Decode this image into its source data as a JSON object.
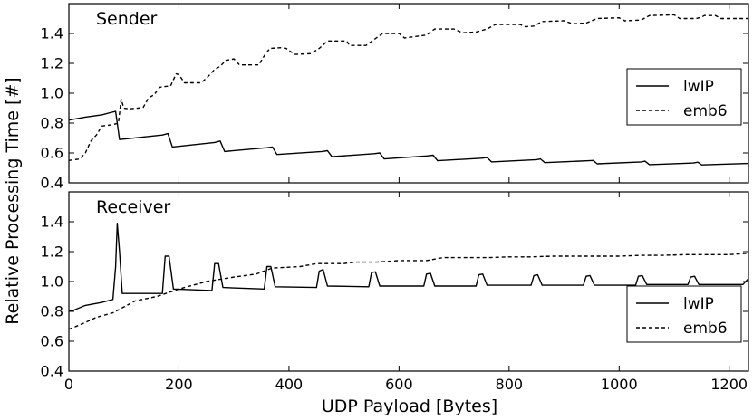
{
  "chart_data": [
    {
      "type": "line",
      "title": "Sender",
      "xlabel": "UDP Payload [Bytes]",
      "ylabel": "Relative Processing Time [#]",
      "xlim": [
        0,
        1235
      ],
      "ylim": [
        0.4,
        1.6
      ],
      "xticks": [
        "0",
        "200",
        "400",
        "600",
        "800",
        "1000",
        "1200"
      ],
      "yticks": [
        "0.4",
        "0.6",
        "0.8",
        "1.0",
        "1.2",
        "1.4"
      ],
      "legend": "right",
      "series": [
        {
          "name": "lwIP",
          "style": "solid",
          "points": [
            [
              0,
              0.82
            ],
            [
              30,
              0.84
            ],
            [
              60,
              0.855
            ],
            [
              75,
              0.87
            ],
            [
              85,
              0.878
            ],
            [
              92,
              0.69
            ],
            [
              170,
              0.72
            ],
            [
              180,
              0.73
            ],
            [
              188,
              0.64
            ],
            [
              265,
              0.67
            ],
            [
              275,
              0.68
            ],
            [
              283,
              0.61
            ],
            [
              360,
              0.635
            ],
            [
              370,
              0.64
            ],
            [
              378,
              0.59
            ],
            [
              460,
              0.61
            ],
            [
              470,
              0.615
            ],
            [
              478,
              0.575
            ],
            [
              555,
              0.595
            ],
            [
              565,
              0.6
            ],
            [
              573,
              0.56
            ],
            [
              650,
              0.58
            ],
            [
              662,
              0.585
            ],
            [
              670,
              0.548
            ],
            [
              750,
              0.565
            ],
            [
              760,
              0.57
            ],
            [
              768,
              0.54
            ],
            [
              850,
              0.555
            ],
            [
              857,
              0.56
            ],
            [
              865,
              0.535
            ],
            [
              945,
              0.548
            ],
            [
              953,
              0.55
            ],
            [
              960,
              0.527
            ],
            [
              1040,
              0.54
            ],
            [
              1047,
              0.545
            ],
            [
              1055,
              0.522
            ],
            [
              1135,
              0.533
            ],
            [
              1143,
              0.538
            ],
            [
              1150,
              0.52
            ],
            [
              1235,
              0.53
            ]
          ]
        },
        {
          "name": "emb6",
          "style": "dashed",
          "points": [
            [
              0,
              0.55
            ],
            [
              20,
              0.56
            ],
            [
              30,
              0.6
            ],
            [
              40,
              0.68
            ],
            [
              50,
              0.72
            ],
            [
              60,
              0.78
            ],
            [
              80,
              0.79
            ],
            [
              90,
              0.8
            ],
            [
              95,
              0.96
            ],
            [
              100,
              0.9
            ],
            [
              110,
              0.895
            ],
            [
              125,
              0.9
            ],
            [
              135,
              0.905
            ],
            [
              145,
              0.97
            ],
            [
              155,
              0.99
            ],
            [
              165,
              1.04
            ],
            [
              185,
              1.05
            ],
            [
              195,
              1.13
            ],
            [
              200,
              1.125
            ],
            [
              210,
              1.07
            ],
            [
              240,
              1.07
            ],
            [
              250,
              1.1
            ],
            [
              255,
              1.12
            ],
            [
              265,
              1.16
            ],
            [
              275,
              1.18
            ],
            [
              285,
              1.22
            ],
            [
              300,
              1.23
            ],
            [
              310,
              1.19
            ],
            [
              345,
              1.19
            ],
            [
              355,
              1.25
            ],
            [
              365,
              1.3
            ],
            [
              385,
              1.305
            ],
            [
              395,
              1.3
            ],
            [
              410,
              1.26
            ],
            [
              440,
              1.265
            ],
            [
              455,
              1.3
            ],
            [
              470,
              1.35
            ],
            [
              505,
              1.35
            ],
            [
              510,
              1.32
            ],
            [
              540,
              1.32
            ],
            [
              555,
              1.36
            ],
            [
              570,
              1.4
            ],
            [
              600,
              1.4
            ],
            [
              610,
              1.37
            ],
            [
              630,
              1.38
            ],
            [
              650,
              1.39
            ],
            [
              665,
              1.43
            ],
            [
              700,
              1.43
            ],
            [
              715,
              1.405
            ],
            [
              740,
              1.41
            ],
            [
              760,
              1.43
            ],
            [
              775,
              1.46
            ],
            [
              820,
              1.46
            ],
            [
              830,
              1.445
            ],
            [
              845,
              1.45
            ],
            [
              860,
              1.48
            ],
            [
              900,
              1.485
            ],
            [
              915,
              1.465
            ],
            [
              940,
              1.47
            ],
            [
              960,
              1.5
            ],
            [
              1000,
              1.505
            ],
            [
              1010,
              1.485
            ],
            [
              1040,
              1.49
            ],
            [
              1055,
              1.52
            ],
            [
              1100,
              1.525
            ],
            [
              1110,
              1.5
            ],
            [
              1140,
              1.5
            ],
            [
              1150,
              1.51
            ],
            [
              1155,
              1.52
            ],
            [
              1175,
              1.52
            ],
            [
              1185,
              1.5
            ],
            [
              1235,
              1.5
            ]
          ]
        }
      ]
    },
    {
      "type": "line",
      "title": "Receiver",
      "xlabel": "UDP Payload [Bytes]",
      "ylabel": "Relative Processing Time [#]",
      "xlim": [
        0,
        1235
      ],
      "ylim": [
        0.4,
        1.6
      ],
      "xticks": [
        "0",
        "200",
        "400",
        "600",
        "800",
        "1000",
        "1200"
      ],
      "yticks": [
        "0.4",
        "0.6",
        "0.8",
        "1.0",
        "1.2",
        "1.4"
      ],
      "legend": "lower right",
      "series": [
        {
          "name": "lwIP",
          "style": "solid",
          "points": [
            [
              0,
              0.8
            ],
            [
              10,
              0.81
            ],
            [
              30,
              0.84
            ],
            [
              60,
              0.86
            ],
            [
              80,
              0.88
            ],
            [
              85,
              1.1
            ],
            [
              88,
              1.39
            ],
            [
              92,
              1.2
            ],
            [
              97,
              0.92
            ],
            [
              170,
              0.92
            ],
            [
              175,
              1.17
            ],
            [
              182,
              1.17
            ],
            [
              190,
              0.95
            ],
            [
              260,
              0.94
            ],
            [
              265,
              1.12
            ],
            [
              272,
              1.12
            ],
            [
              280,
              0.96
            ],
            [
              355,
              0.95
            ],
            [
              360,
              1.1
            ],
            [
              367,
              1.1
            ],
            [
              375,
              0.965
            ],
            [
              450,
              0.96
            ],
            [
              455,
              1.07
            ],
            [
              462,
              1.08
            ],
            [
              470,
              0.97
            ],
            [
              545,
              0.965
            ],
            [
              550,
              1.06
            ],
            [
              557,
              1.065
            ],
            [
              565,
              0.97
            ],
            [
              645,
              0.97
            ],
            [
              650,
              1.05
            ],
            [
              657,
              1.055
            ],
            [
              665,
              0.97
            ],
            [
              740,
              0.97
            ],
            [
              745,
              1.045
            ],
            [
              752,
              1.05
            ],
            [
              760,
              0.975
            ],
            [
              840,
              0.975
            ],
            [
              845,
              1.04
            ],
            [
              852,
              1.045
            ],
            [
              860,
              0.975
            ],
            [
              935,
              0.975
            ],
            [
              940,
              1.035
            ],
            [
              947,
              1.04
            ],
            [
              955,
              0.975
            ],
            [
              1030,
              0.975
            ],
            [
              1035,
              1.035
            ],
            [
              1042,
              1.04
            ],
            [
              1050,
              0.98
            ],
            [
              1125,
              0.98
            ],
            [
              1130,
              1.03
            ],
            [
              1137,
              1.035
            ],
            [
              1145,
              0.98
            ],
            [
              1225,
              0.98
            ],
            [
              1235,
              1.02
            ]
          ]
        },
        {
          "name": "emb6",
          "style": "dashed",
          "points": [
            [
              0,
              0.68
            ],
            [
              20,
              0.71
            ],
            [
              50,
              0.76
            ],
            [
              80,
              0.79
            ],
            [
              100,
              0.83
            ],
            [
              120,
              0.87
            ],
            [
              160,
              0.9
            ],
            [
              200,
              0.95
            ],
            [
              250,
              1.0
            ],
            [
              300,
              1.03
            ],
            [
              340,
              1.05
            ],
            [
              370,
              1.09
            ],
            [
              420,
              1.1
            ],
            [
              450,
              1.12
            ],
            [
              500,
              1.12
            ],
            [
              520,
              1.13
            ],
            [
              560,
              1.13
            ],
            [
              600,
              1.14
            ],
            [
              650,
              1.14
            ],
            [
              680,
              1.16
            ],
            [
              720,
              1.16
            ],
            [
              760,
              1.16
            ],
            [
              800,
              1.165
            ],
            [
              840,
              1.165
            ],
            [
              880,
              1.17
            ],
            [
              920,
              1.17
            ],
            [
              960,
              1.17
            ],
            [
              1000,
              1.17
            ],
            [
              1040,
              1.175
            ],
            [
              1080,
              1.175
            ],
            [
              1120,
              1.18
            ],
            [
              1160,
              1.18
            ],
            [
              1200,
              1.18
            ],
            [
              1235,
              1.19
            ]
          ]
        }
      ]
    }
  ]
}
